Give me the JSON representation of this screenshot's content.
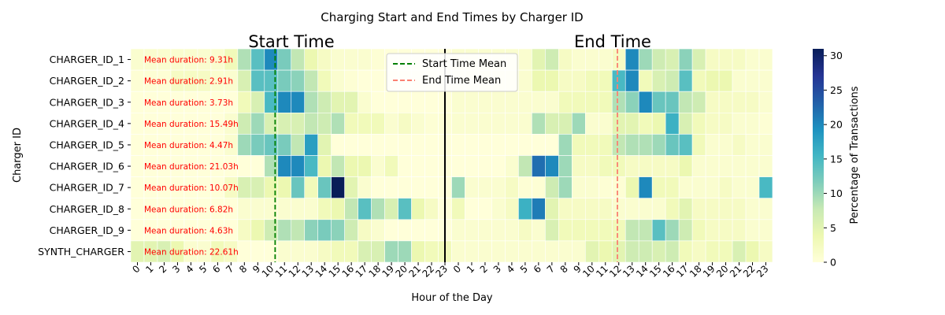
{
  "chart_data": {
    "type": "heatmap",
    "title": "Charging Start and End Times by Charger ID",
    "xlabel": "Hour of the Day",
    "ylabel": "Charger ID",
    "section_labels": [
      "Start Time",
      "End Time"
    ],
    "x_ticks": [
      "0",
      "1",
      "2",
      "3",
      "4",
      "5",
      "6",
      "7",
      "8",
      "9",
      "10",
      "11",
      "12",
      "13",
      "14",
      "15",
      "16",
      "17",
      "18",
      "19",
      "20",
      "21",
      "22",
      "23",
      "0",
      "1",
      "2",
      "3",
      "4",
      "5",
      "6",
      "7",
      "8",
      "9",
      "10",
      "11",
      "12",
      "13",
      "14",
      "15",
      "16",
      "17",
      "18",
      "19",
      "20",
      "21",
      "22",
      "23"
    ],
    "rows": [
      "CHARGER_ID_1",
      "CHARGER_ID_2",
      "CHARGER_ID_3",
      "CHARGER_ID_4",
      "CHARGER_ID_5",
      "CHARGER_ID_6",
      "CHARGER_ID_7",
      "CHARGER_ID_8",
      "CHARGER_ID_9",
      "SYNTH_CHARGER"
    ],
    "annotations": [
      "Mean duration: 9.31h",
      "Mean duration: 2.91h",
      "Mean duration: 3.73h",
      "Mean duration: 15.49h",
      "Mean duration: 4.47h",
      "Mean duration: 21.03h",
      "Mean duration: 10.07h",
      "Mean duration: 6.82h",
      "Mean duration: 4.63h",
      "Mean duration: 22.61h"
    ],
    "values": [
      [
        1,
        1,
        1,
        1,
        1,
        1,
        1,
        3,
        9,
        14,
        20,
        12,
        8,
        4,
        2,
        1,
        1,
        1,
        0.5,
        0,
        0,
        0,
        0,
        0,
        1,
        1,
        1,
        1,
        1,
        1,
        5,
        7,
        2,
        1,
        1,
        1,
        2,
        20,
        10,
        7,
        6,
        11,
        6,
        2,
        2,
        2,
        1,
        1
      ],
      [
        0.5,
        0.5,
        0.5,
        2,
        2,
        2,
        1,
        1,
        6,
        14,
        14,
        12,
        11,
        8,
        3,
        1,
        0.5,
        0,
        0,
        0,
        0,
        0,
        0,
        0,
        0,
        0,
        1,
        1,
        1,
        1,
        4,
        4,
        2,
        2,
        3,
        3,
        15,
        20,
        3,
        6,
        7,
        14,
        3,
        4,
        4,
        1,
        1,
        1
      ],
      [
        0,
        0,
        0,
        0,
        0,
        0,
        0,
        0,
        3,
        6,
        15,
        20,
        20,
        9,
        7,
        5,
        5,
        1,
        0,
        0,
        0,
        0,
        0,
        0,
        1,
        1,
        1,
        1,
        1,
        1,
        1,
        1,
        3,
        3,
        3,
        3,
        9,
        11,
        20,
        13,
        13,
        8,
        7,
        2,
        2,
        2,
        2,
        1
      ],
      [
        0,
        0,
        0,
        0,
        0,
        0,
        0,
        1,
        7,
        10,
        6,
        6,
        6,
        8,
        7,
        9,
        3,
        3,
        3,
        1,
        2,
        1,
        0.5,
        0.5,
        1,
        1,
        1,
        1,
        1,
        1,
        9,
        6,
        6,
        10,
        1,
        1,
        5,
        5,
        3,
        4,
        16,
        6,
        3,
        2,
        2,
        1,
        1,
        0.5
      ],
      [
        0,
        0,
        0,
        0,
        0,
        0,
        0,
        1,
        10,
        12,
        13,
        12,
        8,
        18,
        5,
        0,
        0,
        0,
        0,
        0,
        0,
        0,
        0,
        0,
        0,
        0,
        0,
        0,
        0,
        0,
        0,
        0,
        10,
        3,
        3,
        3,
        8,
        9,
        9,
        10,
        13,
        14,
        3,
        1,
        1,
        2,
        1,
        1
      ],
      [
        0,
        0,
        0,
        0,
        0,
        0,
        0,
        0,
        0,
        0,
        9,
        20,
        20,
        15,
        4,
        8,
        4,
        4,
        1,
        3,
        0,
        0,
        0,
        0,
        0,
        0,
        0,
        0,
        1,
        8,
        22,
        20,
        10,
        2,
        2,
        3,
        3,
        2,
        2,
        2,
        2,
        4,
        1,
        1,
        1,
        1,
        1,
        1
      ],
      [
        0,
        0,
        0,
        0,
        0,
        0,
        0,
        2,
        6,
        6,
        4,
        4,
        13,
        3,
        13,
        31,
        5,
        1,
        0,
        0,
        0,
        0,
        0,
        0,
        10,
        1,
        1,
        1,
        2,
        0.5,
        0.5,
        7,
        10,
        1,
        1,
        0.5,
        0.5,
        4,
        20,
        3,
        3,
        1,
        1,
        1,
        2,
        1,
        1,
        15
      ],
      [
        0,
        0,
        0,
        0,
        0,
        0,
        0,
        0,
        1,
        1,
        1,
        1,
        1,
        1,
        3,
        4,
        8,
        14,
        9,
        6,
        14,
        4,
        2,
        0,
        3,
        0,
        0,
        1,
        2,
        16,
        21,
        5,
        2,
        2,
        2,
        2,
        1,
        1,
        1,
        1,
        3,
        5,
        2,
        2,
        2,
        2,
        1,
        1
      ],
      [
        0,
        0,
        0,
        0,
        0,
        0,
        0,
        0,
        2,
        4,
        7,
        9,
        8,
        11,
        12,
        11,
        7,
        2,
        1,
        0,
        0,
        0,
        0,
        0,
        1,
        1,
        1,
        1,
        1,
        2,
        1,
        6,
        3,
        3,
        3,
        3,
        3,
        8,
        8,
        14,
        10,
        7,
        3,
        2,
        2,
        2,
        1,
        1
      ],
      [
        5,
        5,
        6,
        4,
        1,
        1,
        3,
        2,
        0,
        0,
        0,
        1,
        1,
        1,
        2,
        3,
        3,
        6,
        6,
        10,
        10,
        4,
        3,
        3,
        1,
        1,
        1,
        1,
        1,
        1,
        1,
        1,
        1,
        1,
        5,
        4,
        5,
        7,
        7,
        6,
        7,
        3,
        2,
        3,
        3,
        6,
        4,
        2
      ]
    ],
    "mean_lines": [
      {
        "name": "Start Time Mean",
        "hour": 10.8,
        "color": "#008000"
      },
      {
        "name": "End Time Mean",
        "hour": 12.4,
        "color": "#fa8072"
      }
    ],
    "colorbar": {
      "label": "Percentage of Transactions",
      "range": [
        0,
        31
      ],
      "ticks": [
        "0",
        "5",
        "10",
        "15",
        "20",
        "25",
        "30"
      ]
    },
    "legend_position": "top-center",
    "colormap": "YlGnBu"
  }
}
